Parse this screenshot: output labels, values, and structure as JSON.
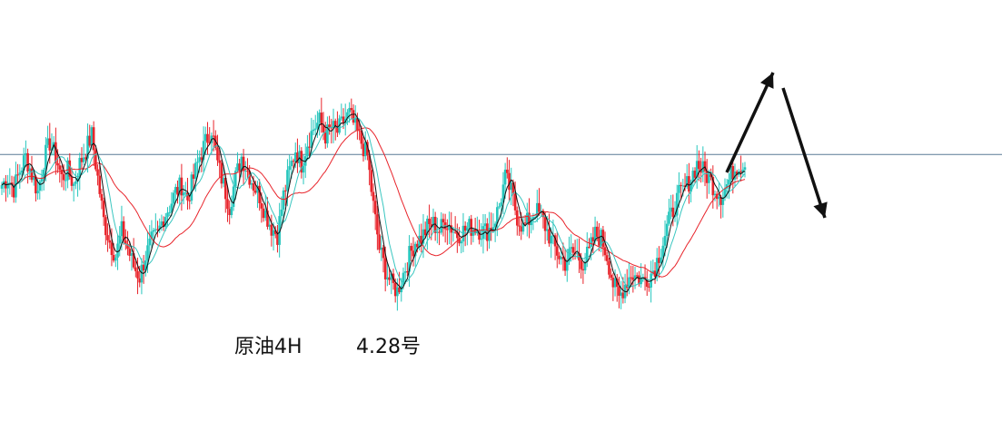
{
  "caption": {
    "symbol": "原油4H",
    "date": "4.28号"
  },
  "colors": {
    "up": "#26c6bd",
    "down": "#e8242b",
    "ma_fast": "#111111",
    "ma_mid": "#39c6c0",
    "ma_slow": "#e8242b",
    "hline": "#5a7a96",
    "arrow": "#111111"
  },
  "chart_data": {
    "type": "candlestick",
    "title": "",
    "xlabel": "",
    "ylabel": "",
    "ylim": [
      0,
      100
    ],
    "grid": false,
    "horizontal_line": 66.6,
    "close_path": [
      58,
      60,
      57,
      62,
      66,
      61,
      56,
      65,
      70,
      66,
      60,
      62,
      58,
      64,
      68,
      72,
      60,
      48,
      42,
      38,
      45,
      40,
      35,
      32,
      38,
      42,
      44,
      49,
      52,
      56,
      58,
      54,
      60,
      66,
      70,
      74,
      64,
      58,
      52,
      60,
      66,
      62,
      58,
      55,
      50,
      46,
      44,
      55,
      62,
      68,
      64,
      70,
      74,
      76,
      72,
      74,
      73,
      76,
      78,
      74,
      70,
      66,
      52,
      40,
      34,
      30,
      28,
      33,
      38,
      42,
      43,
      46,
      47,
      45,
      48,
      46,
      44,
      45,
      46,
      46,
      45,
      45,
      47,
      52,
      60,
      56,
      49,
      46,
      48,
      51,
      49,
      45,
      41,
      38,
      36,
      39,
      38,
      36,
      39,
      44,
      43,
      38,
      30,
      26,
      30,
      33,
      32,
      31,
      32,
      35,
      40,
      46,
      51,
      55,
      57,
      60,
      64,
      62,
      60,
      57,
      55,
      58,
      62,
      64,
      63
    ],
    "ma_fast_period": 5,
    "ma_mid_period": 10,
    "ma_slow_period": 30,
    "annotations": [
      {
        "type": "arrow",
        "direction": "up"
      },
      {
        "type": "arrow",
        "direction": "down"
      }
    ]
  }
}
